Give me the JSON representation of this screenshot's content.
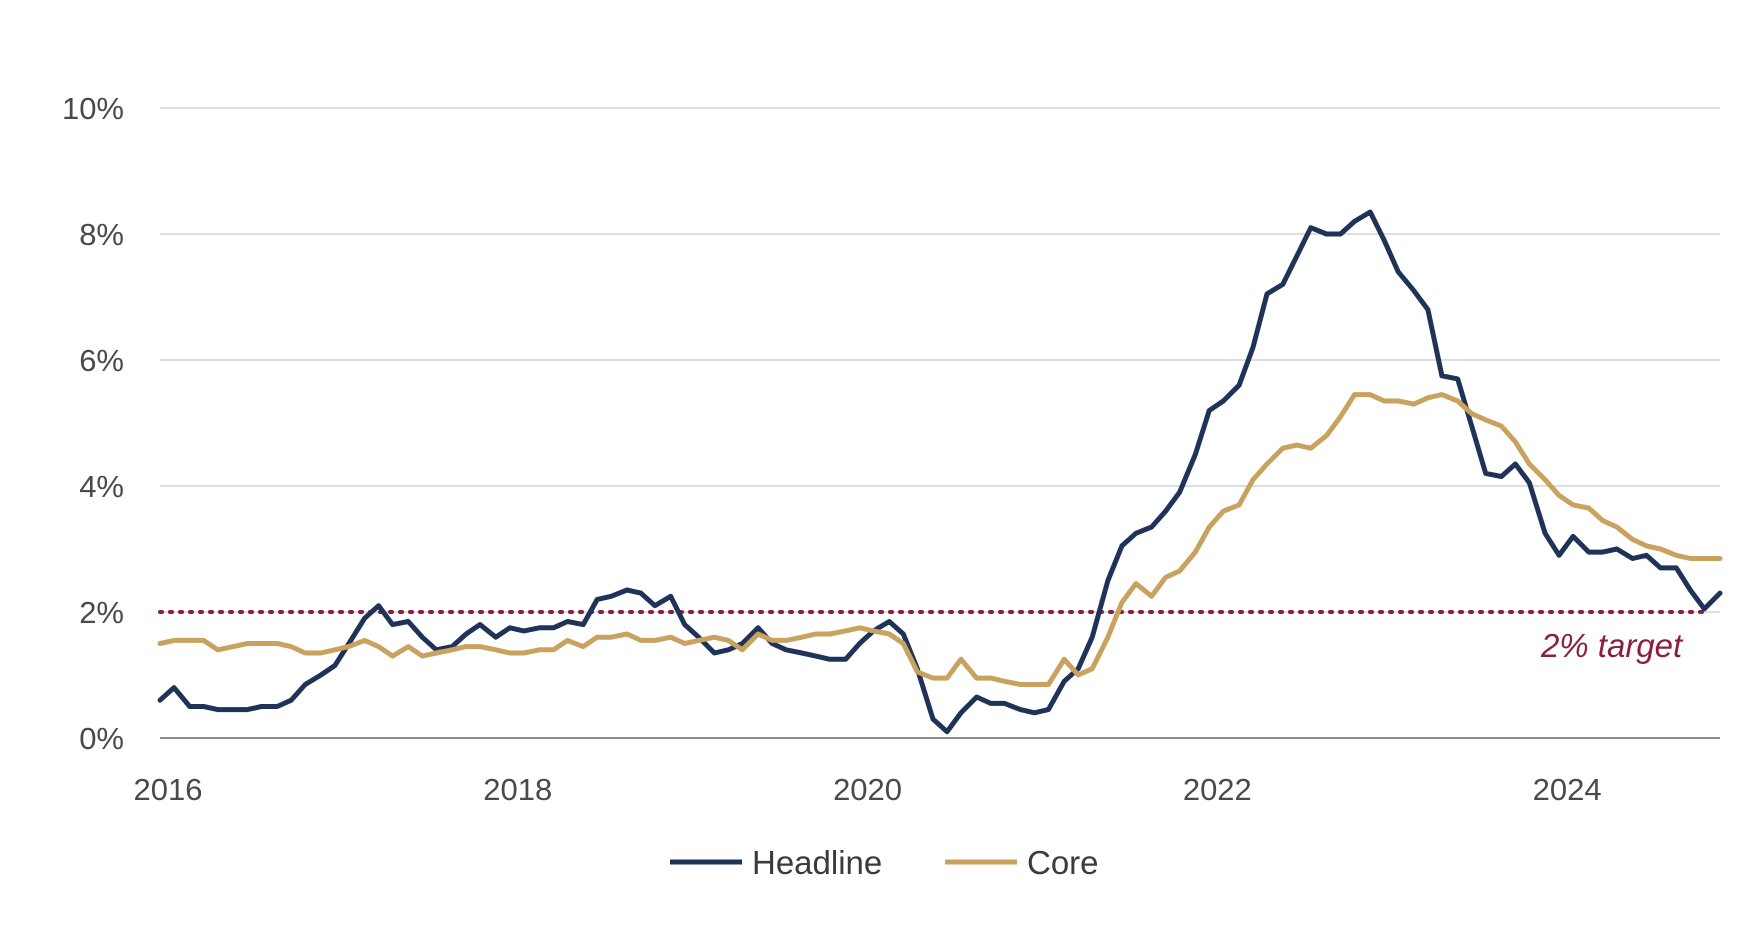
{
  "chart_data": {
    "type": "line",
    "title": "",
    "xlabel": "",
    "ylabel": "",
    "xlim": [
      2016.0,
      2024.92
    ],
    "ylim": [
      0,
      10
    ],
    "y_ticks": [
      0,
      2,
      4,
      6,
      8,
      10
    ],
    "y_tick_labels": [
      "0%",
      "2%",
      "4%",
      "6%",
      "8%",
      "10%"
    ],
    "x_ticks": [
      2016,
      2018,
      2020,
      2022,
      2024
    ],
    "x_tick_labels": [
      "2016",
      "2018",
      "2020",
      "2022",
      "2024"
    ],
    "grid": "horizontal",
    "legend_position": "bottom-center",
    "reference_line": {
      "value": 2,
      "label": "2% target",
      "color": "#8a1f40",
      "style": "dotted"
    },
    "series": [
      {
        "name": "Headline",
        "color": "#1f3358",
        "points": [
          [
            2016.0,
            0.6
          ],
          [
            2016.08,
            0.8
          ],
          [
            2016.17,
            0.5
          ],
          [
            2016.25,
            0.5
          ],
          [
            2016.33,
            0.45
          ],
          [
            2016.42,
            0.45
          ],
          [
            2016.5,
            0.45
          ],
          [
            2016.58,
            0.5
          ],
          [
            2016.67,
            0.5
          ],
          [
            2016.75,
            0.6
          ],
          [
            2016.83,
            0.85
          ],
          [
            2016.92,
            1.0
          ],
          [
            2017.0,
            1.15
          ],
          [
            2017.08,
            1.5
          ],
          [
            2017.17,
            1.9
          ],
          [
            2017.25,
            2.1
          ],
          [
            2017.33,
            1.8
          ],
          [
            2017.42,
            1.85
          ],
          [
            2017.5,
            1.6
          ],
          [
            2017.58,
            1.4
          ],
          [
            2017.67,
            1.45
          ],
          [
            2017.75,
            1.65
          ],
          [
            2017.83,
            1.8
          ],
          [
            2017.92,
            1.6
          ],
          [
            2018.0,
            1.75
          ],
          [
            2018.08,
            1.7
          ],
          [
            2018.17,
            1.75
          ],
          [
            2018.25,
            1.75
          ],
          [
            2018.33,
            1.85
          ],
          [
            2018.42,
            1.8
          ],
          [
            2018.5,
            2.2
          ],
          [
            2018.58,
            2.25
          ],
          [
            2018.67,
            2.35
          ],
          [
            2018.75,
            2.3
          ],
          [
            2018.83,
            2.1
          ],
          [
            2018.92,
            2.25
          ],
          [
            2019.0,
            1.8
          ],
          [
            2019.08,
            1.6
          ],
          [
            2019.17,
            1.35
          ],
          [
            2019.25,
            1.4
          ],
          [
            2019.33,
            1.5
          ],
          [
            2019.42,
            1.75
          ],
          [
            2019.5,
            1.5
          ],
          [
            2019.58,
            1.4
          ],
          [
            2019.67,
            1.35
          ],
          [
            2019.75,
            1.3
          ],
          [
            2019.83,
            1.25
          ],
          [
            2019.92,
            1.25
          ],
          [
            2020.0,
            1.5
          ],
          [
            2020.08,
            1.7
          ],
          [
            2020.17,
            1.85
          ],
          [
            2020.25,
            1.65
          ],
          [
            2020.33,
            1.1
          ],
          [
            2020.42,
            0.3
          ],
          [
            2020.5,
            0.1
          ],
          [
            2020.58,
            0.4
          ],
          [
            2020.67,
            0.65
          ],
          [
            2020.75,
            0.55
          ],
          [
            2020.83,
            0.55
          ],
          [
            2020.92,
            0.45
          ],
          [
            2021.0,
            0.4
          ],
          [
            2021.08,
            0.45
          ],
          [
            2021.17,
            0.9
          ],
          [
            2021.25,
            1.1
          ],
          [
            2021.33,
            1.6
          ],
          [
            2021.42,
            2.5
          ],
          [
            2021.5,
            3.05
          ],
          [
            2021.58,
            3.25
          ],
          [
            2021.67,
            3.35
          ],
          [
            2021.75,
            3.6
          ],
          [
            2021.83,
            3.9
          ],
          [
            2021.92,
            4.5
          ],
          [
            2022.0,
            5.2
          ],
          [
            2022.08,
            5.35
          ],
          [
            2022.17,
            5.6
          ],
          [
            2022.25,
            6.2
          ],
          [
            2022.33,
            7.05
          ],
          [
            2022.42,
            7.2
          ],
          [
            2022.5,
            7.65
          ],
          [
            2022.58,
            8.1
          ],
          [
            2022.67,
            8.0
          ],
          [
            2022.75,
            8.0
          ],
          [
            2022.83,
            8.2
          ],
          [
            2022.92,
            8.35
          ],
          [
            2023.0,
            7.9
          ],
          [
            2023.08,
            7.4
          ],
          [
            2023.17,
            7.1
          ],
          [
            2023.25,
            6.8
          ],
          [
            2023.33,
            5.75
          ],
          [
            2023.42,
            5.7
          ],
          [
            2023.5,
            4.95
          ],
          [
            2023.58,
            4.2
          ],
          [
            2023.67,
            4.15
          ],
          [
            2023.75,
            4.35
          ],
          [
            2023.83,
            4.05
          ],
          [
            2023.92,
            3.25
          ],
          [
            2024.0,
            2.9
          ],
          [
            2024.08,
            3.2
          ],
          [
            2024.17,
            2.95
          ],
          [
            2024.25,
            2.95
          ],
          [
            2024.33,
            3.0
          ],
          [
            2024.42,
            2.85
          ],
          [
            2024.5,
            2.9
          ],
          [
            2024.58,
            2.7
          ],
          [
            2024.67,
            2.7
          ],
          [
            2024.75,
            2.35
          ],
          [
            2024.83,
            2.05
          ],
          [
            2024.92,
            2.3
          ]
        ]
      },
      {
        "name": "Core",
        "color": "#c9a25f",
        "points": [
          [
            2016.0,
            1.5
          ],
          [
            2016.08,
            1.55
          ],
          [
            2016.17,
            1.55
          ],
          [
            2016.25,
            1.55
          ],
          [
            2016.33,
            1.4
          ],
          [
            2016.42,
            1.45
          ],
          [
            2016.5,
            1.5
          ],
          [
            2016.58,
            1.5
          ],
          [
            2016.67,
            1.5
          ],
          [
            2016.75,
            1.45
          ],
          [
            2016.83,
            1.35
          ],
          [
            2016.92,
            1.35
          ],
          [
            2017.0,
            1.4
          ],
          [
            2017.08,
            1.45
          ],
          [
            2017.17,
            1.55
          ],
          [
            2017.25,
            1.45
          ],
          [
            2017.33,
            1.3
          ],
          [
            2017.42,
            1.45
          ],
          [
            2017.5,
            1.3
          ],
          [
            2017.58,
            1.35
          ],
          [
            2017.67,
            1.4
          ],
          [
            2017.75,
            1.45
          ],
          [
            2017.83,
            1.45
          ],
          [
            2017.92,
            1.4
          ],
          [
            2018.0,
            1.35
          ],
          [
            2018.08,
            1.35
          ],
          [
            2018.17,
            1.4
          ],
          [
            2018.25,
            1.4
          ],
          [
            2018.33,
            1.55
          ],
          [
            2018.42,
            1.45
          ],
          [
            2018.5,
            1.6
          ],
          [
            2018.58,
            1.6
          ],
          [
            2018.67,
            1.65
          ],
          [
            2018.75,
            1.55
          ],
          [
            2018.83,
            1.55
          ],
          [
            2018.92,
            1.6
          ],
          [
            2019.0,
            1.5
          ],
          [
            2019.08,
            1.55
          ],
          [
            2019.17,
            1.6
          ],
          [
            2019.25,
            1.55
          ],
          [
            2019.33,
            1.4
          ],
          [
            2019.42,
            1.65
          ],
          [
            2019.5,
            1.55
          ],
          [
            2019.58,
            1.55
          ],
          [
            2019.67,
            1.6
          ],
          [
            2019.75,
            1.65
          ],
          [
            2019.83,
            1.65
          ],
          [
            2019.92,
            1.7
          ],
          [
            2020.0,
            1.75
          ],
          [
            2020.08,
            1.7
          ],
          [
            2020.17,
            1.65
          ],
          [
            2020.25,
            1.5
          ],
          [
            2020.33,
            1.05
          ],
          [
            2020.42,
            0.95
          ],
          [
            2020.5,
            0.95
          ],
          [
            2020.58,
            1.25
          ],
          [
            2020.67,
            0.95
          ],
          [
            2020.75,
            0.95
          ],
          [
            2020.83,
            0.9
          ],
          [
            2020.92,
            0.85
          ],
          [
            2021.0,
            0.85
          ],
          [
            2021.08,
            0.85
          ],
          [
            2021.17,
            1.25
          ],
          [
            2021.25,
            1.0
          ],
          [
            2021.33,
            1.1
          ],
          [
            2021.42,
            1.6
          ],
          [
            2021.5,
            2.15
          ],
          [
            2021.58,
            2.45
          ],
          [
            2021.67,
            2.25
          ],
          [
            2021.75,
            2.55
          ],
          [
            2021.83,
            2.65
          ],
          [
            2021.92,
            2.95
          ],
          [
            2022.0,
            3.35
          ],
          [
            2022.08,
            3.6
          ],
          [
            2022.17,
            3.7
          ],
          [
            2022.25,
            4.1
          ],
          [
            2022.33,
            4.35
          ],
          [
            2022.42,
            4.6
          ],
          [
            2022.5,
            4.65
          ],
          [
            2022.58,
            4.6
          ],
          [
            2022.67,
            4.8
          ],
          [
            2022.75,
            5.1
          ],
          [
            2022.83,
            5.45
          ],
          [
            2022.92,
            5.45
          ],
          [
            2023.0,
            5.35
          ],
          [
            2023.08,
            5.35
          ],
          [
            2023.17,
            5.3
          ],
          [
            2023.25,
            5.4
          ],
          [
            2023.33,
            5.45
          ],
          [
            2023.42,
            5.35
          ],
          [
            2023.5,
            5.15
          ],
          [
            2023.58,
            5.05
          ],
          [
            2023.67,
            4.95
          ],
          [
            2023.75,
            4.7
          ],
          [
            2023.83,
            4.35
          ],
          [
            2023.92,
            4.1
          ],
          [
            2024.0,
            3.85
          ],
          [
            2024.08,
            3.7
          ],
          [
            2024.17,
            3.65
          ],
          [
            2024.25,
            3.45
          ],
          [
            2024.33,
            3.35
          ],
          [
            2024.42,
            3.15
          ],
          [
            2024.5,
            3.05
          ],
          [
            2024.58,
            3.0
          ],
          [
            2024.67,
            2.9
          ],
          [
            2024.75,
            2.85
          ],
          [
            2024.83,
            2.85
          ],
          [
            2024.92,
            2.85
          ]
        ]
      }
    ]
  }
}
